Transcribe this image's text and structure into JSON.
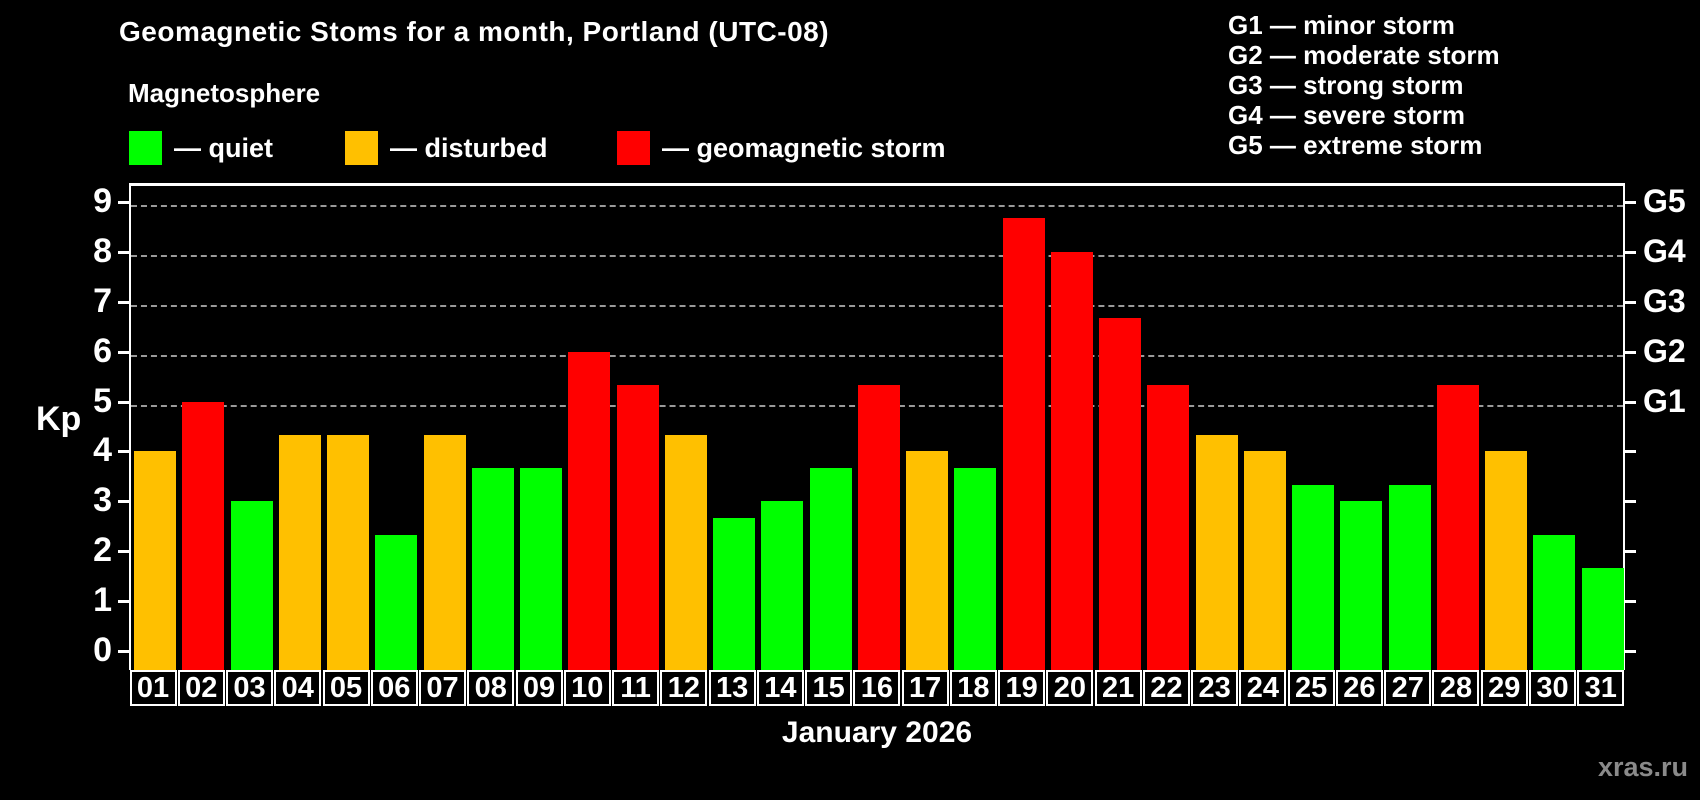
{
  "header": {
    "title": "Geomagnetic Stoms for a month, Portland (UTC-08)",
    "subtitle": "Magnetosphere",
    "watermark": "xras.ru"
  },
  "legend": {
    "items": [
      {
        "key": "quiet",
        "label": "— quiet",
        "color": "#00ff00"
      },
      {
        "key": "disturbed",
        "label": "— disturbed",
        "color": "#ffc000"
      },
      {
        "key": "storm",
        "label": "— geomagnetic storm",
        "color": "#ff0000"
      }
    ]
  },
  "g_legend": [
    "G1 — minor storm",
    "G2 — moderate storm",
    "G3 — strong storm",
    "G4 — severe storm",
    "G5 — extreme storm"
  ],
  "chart_data": {
    "type": "bar",
    "title": "Geomagnetic Stoms for a month, Portland (UTC-08)",
    "xlabel": "January 2026",
    "ylabel": "Kp",
    "ylim": [
      0,
      9
    ],
    "yticks": [
      0,
      1,
      2,
      3,
      4,
      5,
      6,
      7,
      8,
      9
    ],
    "gridlines_at": [
      5,
      6,
      7,
      8,
      9
    ],
    "grid": "dashed horizontal lines at storm levels Kp 5-9 only",
    "legend_position": "top-left",
    "right_axis_labels": [
      {
        "kp": 5,
        "label": "G1"
      },
      {
        "kp": 6,
        "label": "G2"
      },
      {
        "kp": 7,
        "label": "G3"
      },
      {
        "kp": 8,
        "label": "G4"
      },
      {
        "kp": 9,
        "label": "G5"
      }
    ],
    "categories": [
      "01",
      "02",
      "03",
      "04",
      "05",
      "06",
      "07",
      "08",
      "09",
      "10",
      "11",
      "12",
      "13",
      "14",
      "15",
      "16",
      "17",
      "18",
      "19",
      "20",
      "21",
      "22",
      "23",
      "24",
      "25",
      "26",
      "27",
      "28",
      "29",
      "30",
      "31"
    ],
    "series": [
      {
        "name": "Kp index",
        "values": [
          4.0,
          5.0,
          3.0,
          4.33,
          4.33,
          2.33,
          4.33,
          3.67,
          3.67,
          6.0,
          5.33,
          4.33,
          2.67,
          3.0,
          3.67,
          5.33,
          4.0,
          3.67,
          8.67,
          8.0,
          6.67,
          5.33,
          4.33,
          4.0,
          3.33,
          3.0,
          3.33,
          5.33,
          4.0,
          2.33,
          1.67
        ]
      }
    ],
    "statuses": [
      "disturbed",
      "storm",
      "quiet",
      "disturbed",
      "disturbed",
      "quiet",
      "disturbed",
      "quiet",
      "quiet",
      "storm",
      "storm",
      "disturbed",
      "quiet",
      "quiet",
      "quiet",
      "storm",
      "disturbed",
      "quiet",
      "storm",
      "storm",
      "storm",
      "storm",
      "disturbed",
      "disturbed",
      "quiet",
      "quiet",
      "quiet",
      "storm",
      "disturbed",
      "quiet",
      "quiet"
    ],
    "colors": {
      "quiet": "#00ff00",
      "disturbed": "#ffc000",
      "storm": "#ff0000"
    }
  },
  "x_axis": {
    "month_label": "January 2026"
  }
}
